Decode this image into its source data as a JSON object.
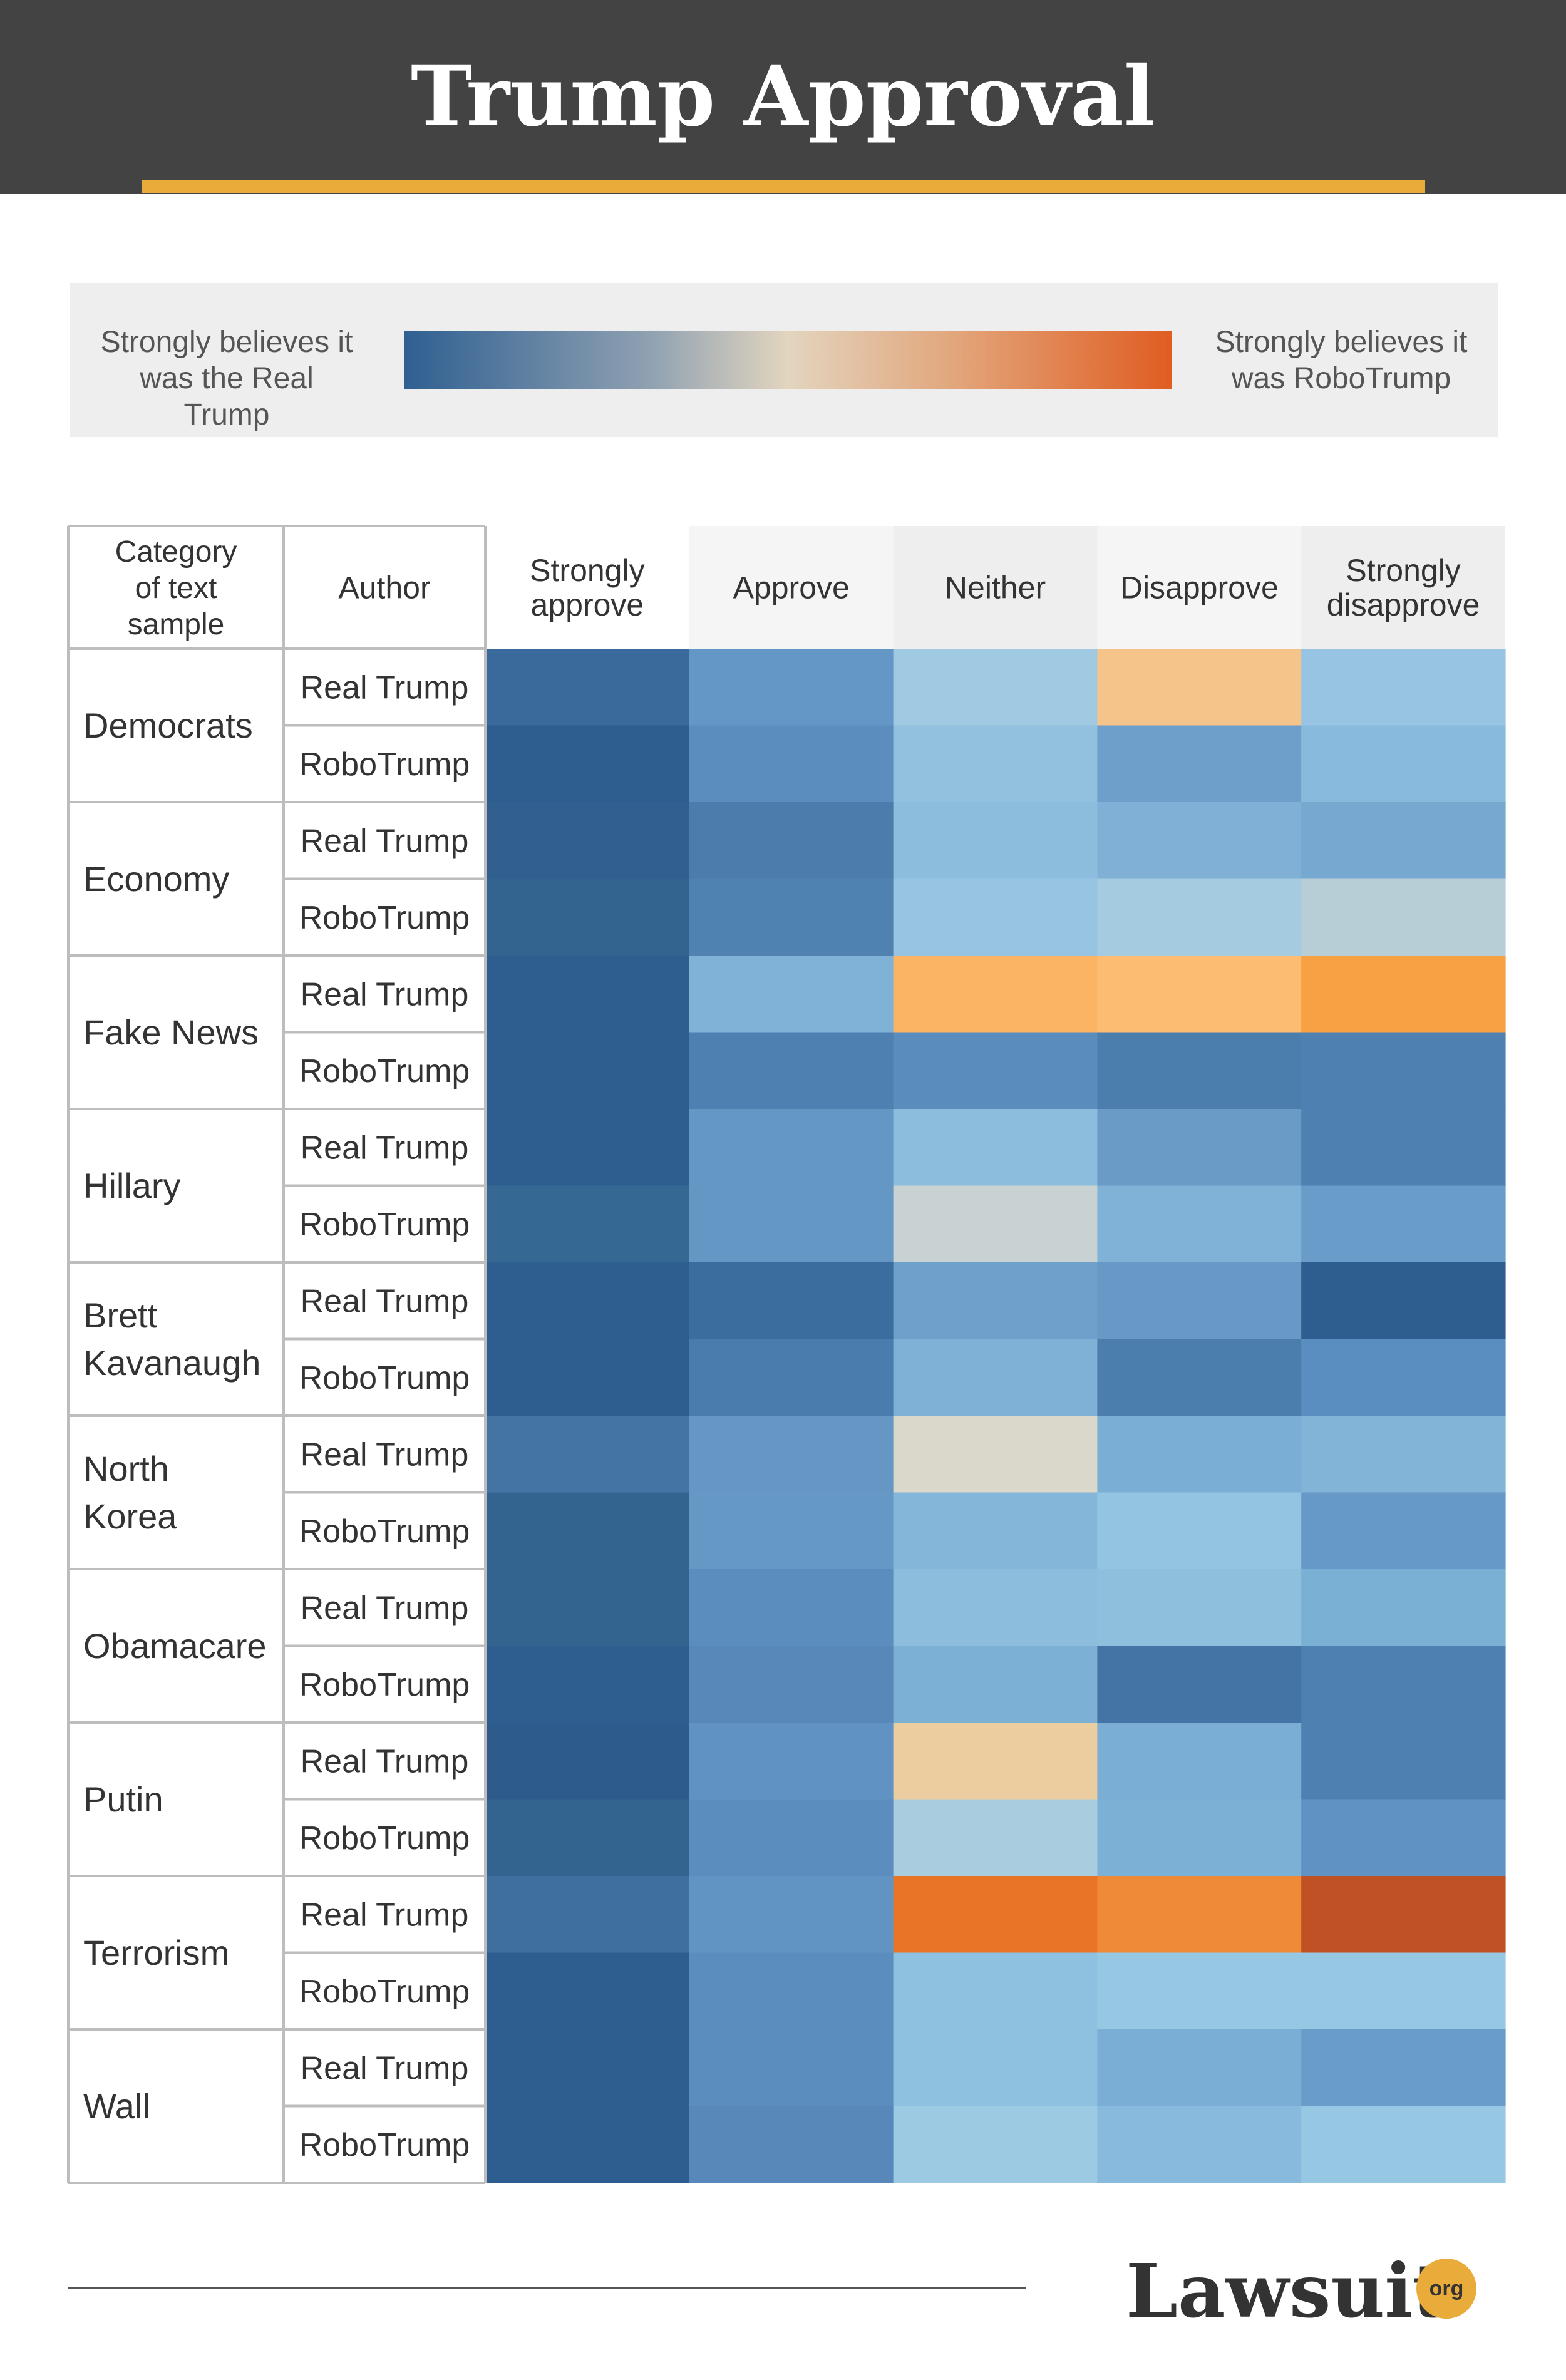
{
  "header": {
    "title": "Trump Approval",
    "background": "#434343",
    "accent": "#e9ac3a"
  },
  "legend": {
    "left_lines": [
      "Strongly believes it",
      "was the Real Trump"
    ],
    "right_lines": [
      "Strongly believes it",
      "was RoboTrump"
    ],
    "scale_colors": [
      "#2f5f91",
      "#8fa1b2",
      "#e3d5bf",
      "#e2a57a",
      "#e05d22"
    ]
  },
  "chart_data": {
    "type": "heatmap",
    "title": "Trump Approval",
    "header_labels": {
      "category": [
        "Category",
        "of text",
        "sample"
      ],
      "author": [
        "Author"
      ]
    },
    "columns": [
      {
        "lines": [
          "Strongly",
          "approve"
        ]
      },
      {
        "lines": [
          "Approve"
        ]
      },
      {
        "lines": [
          "Neither"
        ]
      },
      {
        "lines": [
          "Disapprove"
        ]
      },
      {
        "lines": [
          "Strongly",
          "disapprove"
        ]
      }
    ],
    "authors": [
      "Real Trump",
      "RoboTrump"
    ],
    "categories": [
      {
        "lines": [
          "Democrats"
        ],
        "colors": [
          [
            "#3a6a9b",
            "#6497c5",
            "#9fcae2",
            "#f5c48a",
            "#97c4e2"
          ],
          [
            "#2e5e8f",
            "#5b8dbe",
            "#92c1df",
            "#6e9fca",
            "#88bade"
          ]
        ]
      },
      {
        "lines": [
          "Economy"
        ],
        "colors": [
          [
            "#305f90",
            "#4b7cac",
            "#8cbddd",
            "#80b0d6",
            "#76a8d0"
          ],
          [
            "#33638f",
            "#4f81b1",
            "#97c4e2",
            "#a5cbe0",
            "#b7ced6"
          ]
        ]
      },
      {
        "lines": [
          "Fake News"
        ],
        "colors": [
          [
            "#2e5e8f",
            "#7fb2d6",
            "#fab464",
            "#fcbd73",
            "#f8a144"
          ],
          [
            "#2e5e8f",
            "#4e81b1",
            "#5a8dbe",
            "#4b7dad",
            "#4e81b1"
          ]
        ]
      },
      {
        "lines": [
          "Hillary"
        ],
        "colors": [
          [
            "#2e5e8f",
            "#6597c5",
            "#8cbddd",
            "#6a9ac6",
            "#4e81b1"
          ],
          [
            "#356893",
            "#6597c5",
            "#c8d2d2",
            "#80b2d7",
            "#6a9cc9"
          ]
        ]
      },
      {
        "lines": [
          "Brett",
          "Kavanaugh"
        ],
        "colors": [
          [
            "#2e5e8f",
            "#3b6d9f",
            "#6ea0cb",
            "#6899c6",
            "#2e5e8f"
          ],
          [
            "#2e5e8f",
            "#4a7cad",
            "#7fb1d6",
            "#4b7dad",
            "#5b8ec0"
          ]
        ]
      },
      {
        "lines": [
          "North",
          "Korea"
        ],
        "colors": [
          [
            "#4474a4",
            "#6596c4",
            "#dad7cb",
            "#7aaed5",
            "#82b4d8"
          ],
          [
            "#33638f",
            "#6698c6",
            "#84b6da",
            "#93c4e1",
            "#6698c8"
          ]
        ]
      },
      {
        "lines": [
          "Obamacare"
        ],
        "colors": [
          [
            "#33638f",
            "#5b8dbe",
            "#8cbddd",
            "#8ec0de",
            "#7ab0d4"
          ],
          [
            "#2e5e8f",
            "#5788b9",
            "#7db0d5",
            "#4374a5",
            "#4e81b1"
          ]
        ]
      },
      {
        "lines": [
          "Putin"
        ],
        "colors": [
          [
            "#2c5b8c",
            "#6093c3",
            "#ebcd9f",
            "#7aaed5",
            "#4e81b1"
          ],
          [
            "#33638f",
            "#5b8dbe",
            "#a9cddf",
            "#7db0d5",
            "#6093c3"
          ]
        ]
      },
      {
        "lines": [
          "Terrorism"
        ],
        "colors": [
          [
            "#3f6f9f",
            "#6193c3",
            "#ea7426",
            "#ef8a37",
            "#bf5124"
          ],
          [
            "#2e5e8f",
            "#5b8dbe",
            "#8ec0df",
            "#97c8e3",
            "#97c8e3"
          ]
        ]
      },
      {
        "lines": [
          "Wall"
        ],
        "colors": [
          [
            "#2e5e8f",
            "#5b8dbe",
            "#8ec0df",
            "#7aaed5",
            "#6a9cc9"
          ],
          [
            "#2e5e8f",
            "#5788b9",
            "#9dcae3",
            "#88bade",
            "#97c8e3"
          ]
        ]
      }
    ]
  },
  "footer": {
    "logo_text": "Lawsuit",
    "logo_badge": "org"
  }
}
